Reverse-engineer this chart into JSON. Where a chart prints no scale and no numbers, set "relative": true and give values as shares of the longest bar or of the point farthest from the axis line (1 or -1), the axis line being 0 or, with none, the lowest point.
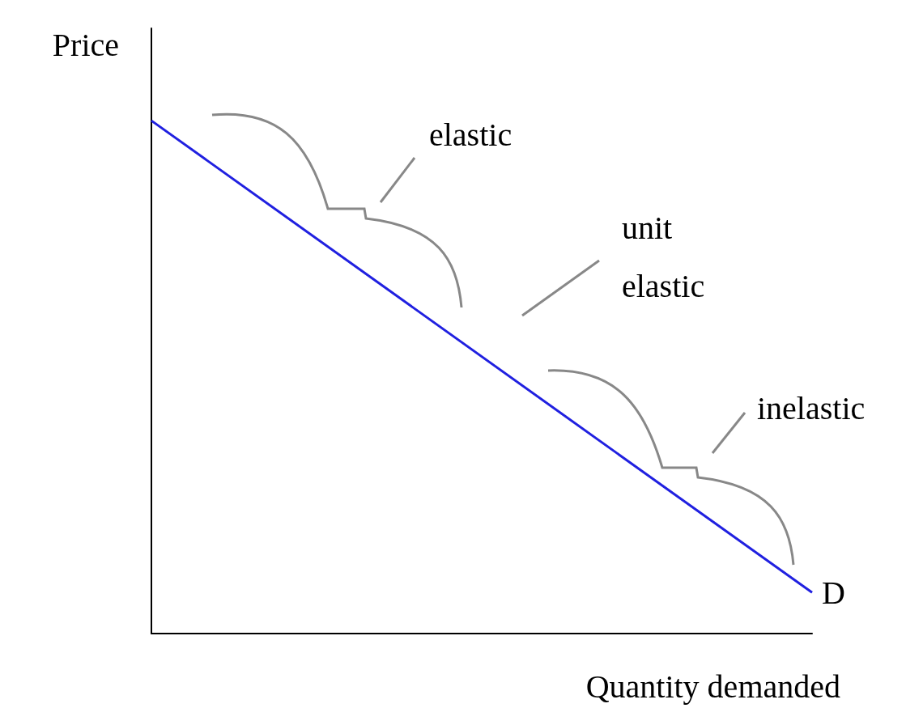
{
  "chart_data": {
    "type": "line",
    "relative": true,
    "xlabel": "Quantity demanded",
    "ylabel": "Price",
    "categories": [
      null,
      null
    ],
    "series": [
      {
        "name": "D",
        "color": "#2020e0",
        "values": [
          1,
          0.08
        ]
      }
    ],
    "annotations": [
      "elastic",
      "unit\nelastic",
      "inelastic"
    ],
    "grid": false,
    "legend": false,
    "marker": "none",
    "line_style": "solid"
  }
}
